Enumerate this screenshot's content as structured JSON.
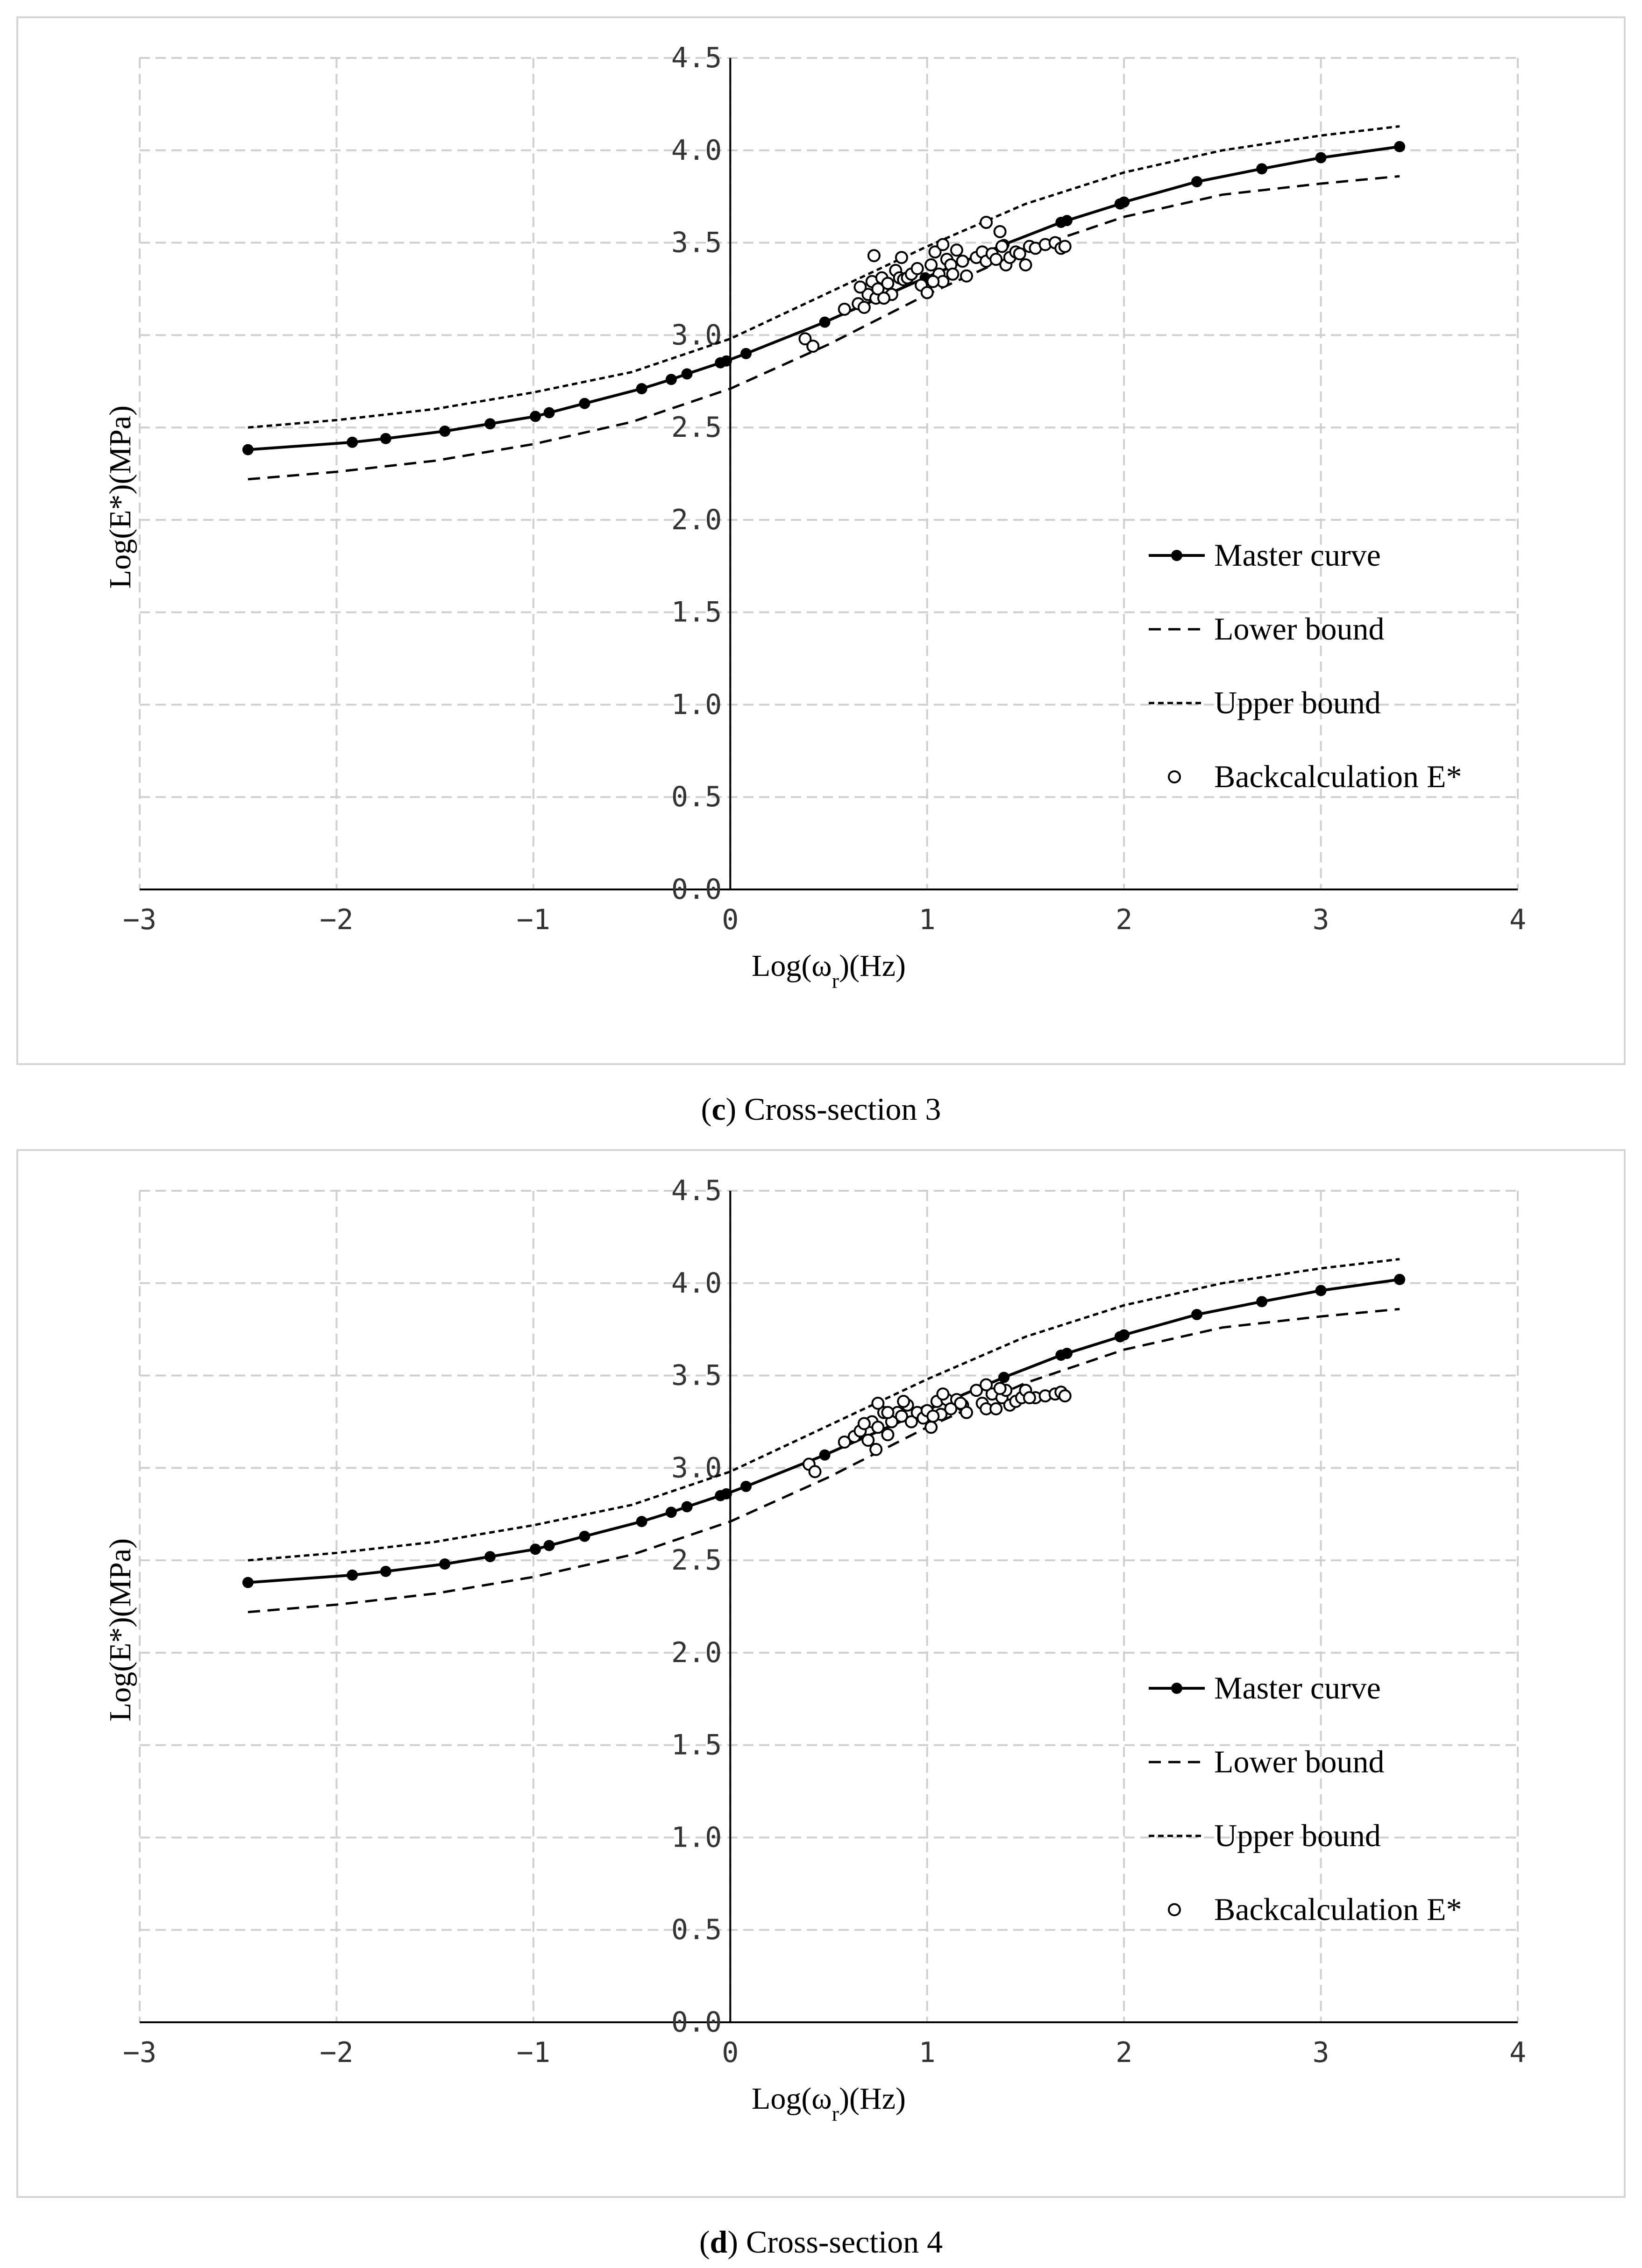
{
  "chart_data": [
    {
      "type": "line",
      "caption_label": "c",
      "caption_text": "Cross-section 3",
      "xlabel": "Log(ω",
      "xlabel_sub": "r",
      "xlabel_suffix": ")(Hz)",
      "ylabel": "Log(E*)(MPa)",
      "xlim": [
        -3,
        4
      ],
      "ylim": [
        0,
        4.5
      ],
      "x_ticks": [
        "−3",
        "−2",
        "−1",
        "0",
        "1",
        "2",
        "3",
        "4"
      ],
      "y_ticks": [
        "0.0",
        "0.5",
        "1.0",
        "1.5",
        "2.0",
        "2.5",
        "3.0",
        "3.5",
        "4.0",
        "4.5"
      ],
      "grid": true,
      "legend_position": "lower-right",
      "series": [
        {
          "name": "Master curve",
          "style": "solid-marker",
          "x": [
            -2.45,
            -1.92,
            -1.75,
            -1.45,
            -1.22,
            -0.99,
            -0.92,
            -0.74,
            -0.45,
            -0.3,
            -0.22,
            -0.05,
            -0.02,
            0.08,
            0.48,
            0.99,
            1.39,
            1.68,
            1.71,
            1.98,
            2.0,
            2.37,
            2.7,
            3.0,
            3.4
          ],
          "y": [
            2.38,
            2.42,
            2.44,
            2.48,
            2.52,
            2.56,
            2.58,
            2.63,
            2.71,
            2.76,
            2.79,
            2.85,
            2.86,
            2.9,
            3.07,
            3.31,
            3.49,
            3.61,
            3.62,
            3.71,
            3.72,
            3.83,
            3.9,
            3.96,
            4.02
          ]
        },
        {
          "name": "Lower bound",
          "style": "long-dash",
          "x": [
            -2.45,
            -2.0,
            -1.5,
            -1.0,
            -0.5,
            0.0,
            0.5,
            1.0,
            1.5,
            2.0,
            2.5,
            3.0,
            3.4
          ],
          "y": [
            2.22,
            2.26,
            2.32,
            2.41,
            2.53,
            2.71,
            2.95,
            3.22,
            3.46,
            3.64,
            3.76,
            3.82,
            3.86
          ]
        },
        {
          "name": "Upper bound",
          "style": "short-dash",
          "x": [
            -2.45,
            -2.0,
            -1.5,
            -1.0,
            -0.5,
            0.0,
            0.5,
            1.0,
            1.5,
            2.0,
            2.5,
            3.0,
            3.4
          ],
          "y": [
            2.5,
            2.54,
            2.6,
            2.69,
            2.8,
            2.98,
            3.23,
            3.48,
            3.71,
            3.88,
            4.0,
            4.08,
            4.13
          ]
        },
        {
          "name": "Backcalculation E*",
          "style": "open-circle",
          "x": [
            0.38,
            0.42,
            0.58,
            0.65,
            0.68,
            0.7,
            0.72,
            0.74,
            0.75,
            0.77,
            0.8,
            0.82,
            0.84,
            0.86,
            0.88,
            0.9,
            0.92,
            0.95,
            0.97,
            1.0,
            1.02,
            1.04,
            1.06,
            1.08,
            1.1,
            1.12,
            1.15,
            1.18,
            1.2,
            1.25,
            1.28,
            1.3,
            1.33,
            1.35,
            1.38,
            1.4,
            1.42,
            1.45,
            1.5,
            1.52,
            1.55,
            1.6,
            1.65,
            1.68,
            1.7,
            1.3,
            1.37,
            1.08,
            0.87,
            0.73,
            1.03,
            0.78,
            0.66,
            1.13,
            1.47
          ],
          "y": [
            2.98,
            2.94,
            3.14,
            3.17,
            3.15,
            3.22,
            3.29,
            3.2,
            3.25,
            3.31,
            3.28,
            3.22,
            3.35,
            3.31,
            3.3,
            3.31,
            3.33,
            3.36,
            3.27,
            3.23,
            3.38,
            3.45,
            3.33,
            3.29,
            3.41,
            3.38,
            3.46,
            3.4,
            3.32,
            3.42,
            3.45,
            3.4,
            3.44,
            3.41,
            3.48,
            3.38,
            3.42,
            3.45,
            3.38,
            3.48,
            3.47,
            3.49,
            3.5,
            3.47,
            3.48,
            3.61,
            3.56,
            3.49,
            3.42,
            3.43,
            3.29,
            3.2,
            3.26,
            3.33,
            3.44
          ]
        }
      ]
    },
    {
      "type": "line",
      "caption_label": "d",
      "caption_text": "Cross-section 4",
      "xlabel": "Log(ω",
      "xlabel_sub": "r",
      "xlabel_suffix": ")(Hz)",
      "ylabel": "Log(E*)(MPa)",
      "xlim": [
        -3,
        4
      ],
      "ylim": [
        0,
        4.5
      ],
      "x_ticks": [
        "−3",
        "−2",
        "−1",
        "0",
        "1",
        "2",
        "3",
        "4"
      ],
      "y_ticks": [
        "0.0",
        "0.5",
        "1.0",
        "1.5",
        "2.0",
        "2.5",
        "3.0",
        "3.5",
        "4.0",
        "4.5"
      ],
      "grid": true,
      "legend_position": "lower-right",
      "series": [
        {
          "name": "Master curve",
          "style": "solid-marker",
          "x": [
            -2.45,
            -1.92,
            -1.75,
            -1.45,
            -1.22,
            -0.99,
            -0.92,
            -0.74,
            -0.45,
            -0.3,
            -0.22,
            -0.05,
            -0.02,
            0.08,
            0.48,
            0.99,
            1.39,
            1.68,
            1.71,
            1.98,
            2.0,
            2.37,
            2.7,
            3.0,
            3.4
          ],
          "y": [
            2.38,
            2.42,
            2.44,
            2.48,
            2.52,
            2.56,
            2.58,
            2.63,
            2.71,
            2.76,
            2.79,
            2.85,
            2.86,
            2.9,
            3.07,
            3.31,
            3.49,
            3.61,
            3.62,
            3.71,
            3.72,
            3.83,
            3.9,
            3.96,
            4.02
          ]
        },
        {
          "name": "Lower bound",
          "style": "long-dash",
          "x": [
            -2.45,
            -2.0,
            -1.5,
            -1.0,
            -0.5,
            0.0,
            0.5,
            1.0,
            1.5,
            2.0,
            2.5,
            3.0,
            3.4
          ],
          "y": [
            2.22,
            2.26,
            2.32,
            2.41,
            2.53,
            2.71,
            2.95,
            3.22,
            3.46,
            3.64,
            3.76,
            3.82,
            3.86
          ]
        },
        {
          "name": "Upper bound",
          "style": "short-dash",
          "x": [
            -2.45,
            -2.0,
            -1.5,
            -1.0,
            -0.5,
            0.0,
            0.5,
            1.0,
            1.5,
            2.0,
            2.5,
            3.0,
            3.4
          ],
          "y": [
            2.5,
            2.54,
            2.6,
            2.69,
            2.8,
            2.98,
            3.23,
            3.48,
            3.71,
            3.88,
            4.0,
            4.08,
            4.13
          ]
        },
        {
          "name": "Backcalculation E*",
          "style": "open-circle",
          "x": [
            0.4,
            0.43,
            0.58,
            0.63,
            0.66,
            0.7,
            0.72,
            0.74,
            0.75,
            0.78,
            0.8,
            0.82,
            0.85,
            0.87,
            0.9,
            0.92,
            0.95,
            0.98,
            1.0,
            1.02,
            1.05,
            1.07,
            1.1,
            1.12,
            1.15,
            1.18,
            1.2,
            1.25,
            1.28,
            1.3,
            1.33,
            1.35,
            1.38,
            1.4,
            1.42,
            1.45,
            1.48,
            1.5,
            1.55,
            1.6,
            1.65,
            1.68,
            1.7,
            0.75,
            0.88,
            1.08,
            1.3,
            1.37,
            0.8,
            1.03,
            0.68,
            1.17,
            1.52
          ],
          "y": [
            3.02,
            2.98,
            3.14,
            3.17,
            3.2,
            3.15,
            3.25,
            3.1,
            3.22,
            3.3,
            3.18,
            3.25,
            3.3,
            3.28,
            3.34,
            3.25,
            3.3,
            3.27,
            3.31,
            3.22,
            3.36,
            3.29,
            3.37,
            3.32,
            3.37,
            3.34,
            3.3,
            3.42,
            3.35,
            3.32,
            3.4,
            3.32,
            3.38,
            3.42,
            3.34,
            3.36,
            3.38,
            3.42,
            3.38,
            3.39,
            3.4,
            3.41,
            3.39,
            3.35,
            3.36,
            3.4,
            3.45,
            3.43,
            3.3,
            3.28,
            3.24,
            3.35,
            3.38
          ]
        }
      ]
    }
  ]
}
